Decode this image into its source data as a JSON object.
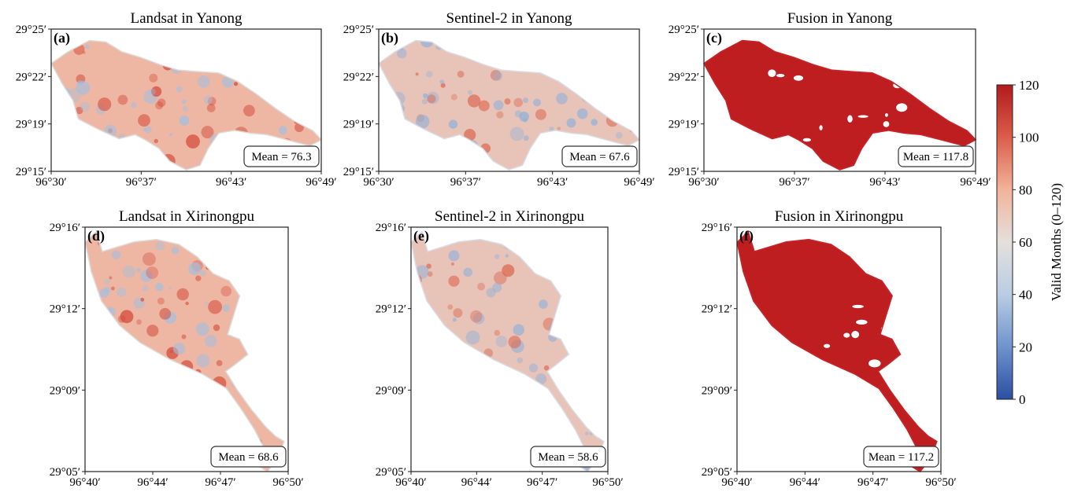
{
  "figure": {
    "panels": [
      {
        "id": "a",
        "label": "(a)",
        "title": "Landsat in Yanong",
        "mean_label": "Mean = 76.3",
        "y_ticks": [
          "29°25′",
          "29°22′",
          "29°19′",
          "29°15′"
        ],
        "x_ticks": [
          "96°30′",
          "96°37′",
          "96°43′",
          "96°49′"
        ],
        "region": "yanong",
        "style": "landsat"
      },
      {
        "id": "b",
        "label": "(b)",
        "title": "Sentinel-2 in Yanong",
        "mean_label": "Mean = 67.6",
        "y_ticks": [
          "29°25′",
          "29°22′",
          "29°19′",
          "29°15′"
        ],
        "x_ticks": [
          "96°30′",
          "96°37′",
          "96°43′",
          "96°49′"
        ],
        "region": "yanong",
        "style": "sentinel"
      },
      {
        "id": "c",
        "label": "(c)",
        "title": "Fusion in Yanong",
        "mean_label": "Mean = 117.8",
        "y_ticks": [
          "29°25′",
          "29°22′",
          "29°19′",
          "29°15′"
        ],
        "x_ticks": [
          "96°30′",
          "96°37′",
          "96°43′",
          "96°49′"
        ],
        "region": "yanong",
        "style": "fusion"
      },
      {
        "id": "d",
        "label": "(d)",
        "title": "Landsat in Xirinongpu",
        "mean_label": "Mean = 68.6",
        "y_ticks": [
          "29°16′",
          "29°12′",
          "29°09′",
          "29°05′"
        ],
        "x_ticks": [
          "96°40′",
          "96°44′",
          "96°47′",
          "96°50′"
        ],
        "region": "xirinongpu",
        "style": "landsat"
      },
      {
        "id": "e",
        "label": "(e)",
        "title": "Sentinel-2 in Xirinongpu",
        "mean_label": "Mean = 58.6",
        "y_ticks": [
          "29°16′",
          "29°12′",
          "29°09′",
          "29°05′"
        ],
        "x_ticks": [
          "96°40′",
          "96°44′",
          "96°47′",
          "96°50′"
        ],
        "region": "xirinongpu",
        "style": "sentinel"
      },
      {
        "id": "f",
        "label": "(f)",
        "title": "Fusion in Xirinongpu",
        "mean_label": "Mean = 117.2",
        "y_ticks": [
          "29°16′",
          "29°12′",
          "29°09′",
          "29°05′"
        ],
        "x_ticks": [
          "96°40′",
          "96°44′",
          "96°47′",
          "96°50′"
        ],
        "region": "xirinongpu",
        "style": "fusion"
      }
    ],
    "colorbar": {
      "label": "Valid Months (0–120)",
      "ticks": [
        "120",
        "100",
        "80",
        "60",
        "40",
        "20",
        "0"
      ],
      "min": 0,
      "max": 120,
      "colors": [
        "#2b4ea2",
        "#6f93cc",
        "#b9cde4",
        "#e4e0dc",
        "#f2b39a",
        "#dc5d4a",
        "#b11a1d"
      ]
    },
    "style_colors": {
      "landsat": {
        "base": "#eeb7a3",
        "hot": "#d44a3a",
        "cool": "#a3bfe0",
        "edge": "#dcdcdc"
      },
      "sentinel": {
        "base": "#e8c4b8",
        "hot": "#dc6a52",
        "cool": "#8fb0da",
        "edge": "#d8dde6"
      },
      "fusion": {
        "base": "#bf1e21",
        "hot": "#bf1e21",
        "cool": "#bf1e21",
        "edge": "#c8252a"
      }
    }
  }
}
